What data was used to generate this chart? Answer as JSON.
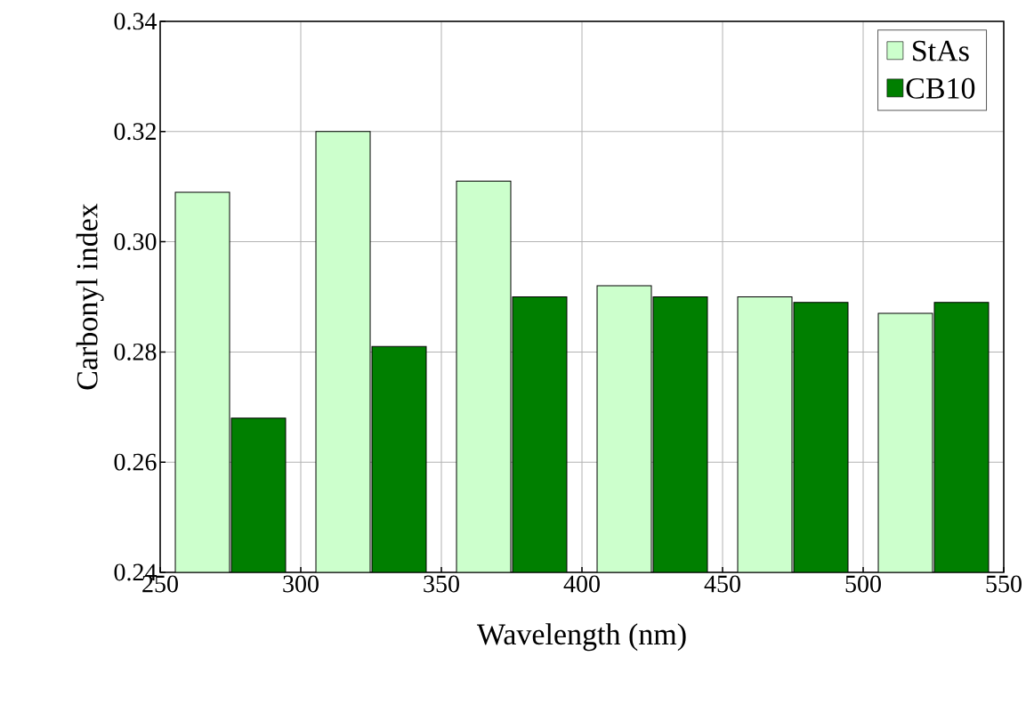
{
  "chart_data": {
    "type": "bar",
    "xlabel": "Wavelength (nm)",
    "ylabel": "Carbonyl index",
    "x": [
      275,
      325,
      375,
      425,
      475,
      525
    ],
    "xlim": [
      250,
      550
    ],
    "xticks": [
      250,
      300,
      350,
      400,
      450,
      500,
      550
    ],
    "ylim": [
      0.24,
      0.34
    ],
    "yticks": [
      {
        "value": 0.24,
        "label": "0.24"
      },
      {
        "value": 0.26,
        "label": "0.26"
      },
      {
        "value": 0.28,
        "label": "0.28"
      },
      {
        "value": 0.3,
        "label": "0.30"
      },
      {
        "value": 0.32,
        "label": "0.32"
      },
      {
        "value": 0.34,
        "label": "0.34"
      }
    ],
    "series": [
      {
        "name": "StAs",
        "color": "#ccffcc",
        "values": [
          0.309,
          0.32,
          0.311,
          0.292,
          0.29,
          0.287
        ]
      },
      {
        "name": "CB10",
        "color": "#007f00",
        "values": [
          0.268,
          0.281,
          0.29,
          0.29,
          0.289,
          0.289
        ]
      }
    ],
    "grid": true,
    "legend": "top right"
  }
}
